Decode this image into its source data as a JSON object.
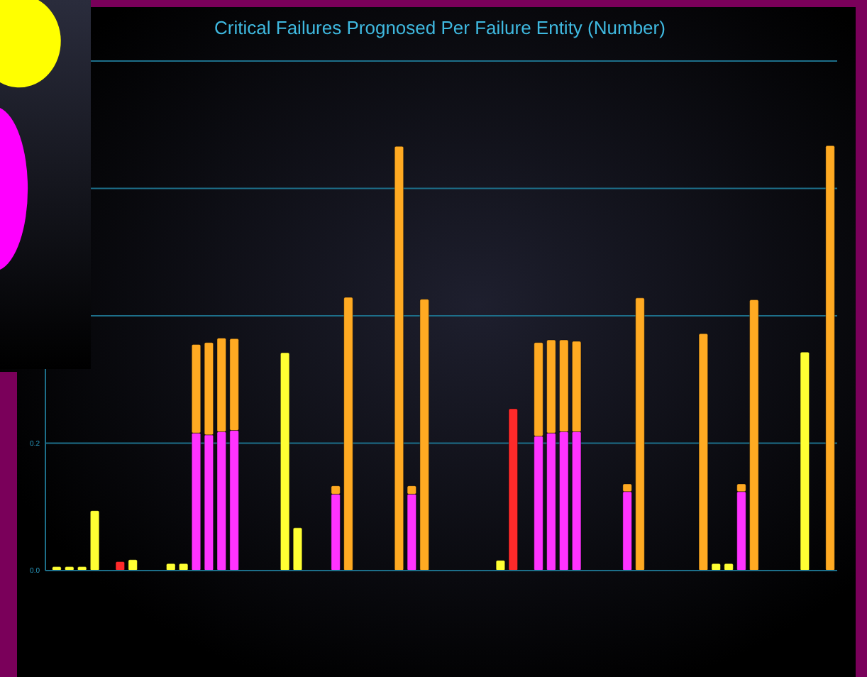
{
  "chart_data": {
    "type": "bar",
    "title": "Critical Failures Prognosed Per Failure Entity (Number)",
    "categories": [
      null,
      null,
      null,
      null,
      null,
      null,
      null,
      null,
      null,
      null,
      null,
      null,
      null,
      null,
      null,
      null,
      null,
      null,
      null,
      null,
      null,
      null,
      null,
      null,
      null,
      null,
      null,
      null,
      null,
      null,
      null,
      null,
      null,
      null,
      null,
      null,
      null,
      null,
      null,
      null,
      null,
      null,
      null,
      null,
      null,
      null,
      null,
      null,
      null,
      null,
      null,
      null,
      null,
      null,
      null,
      null,
      null,
      null,
      null,
      null,
      null,
      null
    ],
    "stacked": true,
    "series": [
      {
        "color": "#ff33ff",
        "values": [
          null,
          null,
          null,
          null,
          null,
          null,
          null,
          null,
          null,
          null,
          null,
          0.216,
          0.213,
          0.218,
          0.22,
          null,
          null,
          null,
          null,
          null,
          null,
          null,
          0.12,
          null,
          null,
          null,
          null,
          null,
          0.12,
          null,
          null,
          null,
          null,
          null,
          null,
          null,
          null,
          null,
          0.211,
          0.216,
          0.218,
          0.218,
          null,
          null,
          null,
          0.124,
          null,
          null,
          null,
          null,
          null,
          null,
          null,
          null,
          0.124,
          null,
          null,
          null,
          null,
          null,
          null,
          null
        ]
      },
      {
        "color": "#ffaa22",
        "values": [
          null,
          null,
          null,
          null,
          null,
          null,
          null,
          null,
          null,
          null,
          null,
          0.139,
          0.145,
          0.147,
          0.144,
          null,
          null,
          null,
          null,
          null,
          null,
          null,
          0.013,
          0.429,
          null,
          null,
          null,
          0.666,
          0.013,
          0.426,
          null,
          null,
          null,
          null,
          null,
          null,
          null,
          null,
          0.147,
          0.146,
          0.144,
          0.142,
          null,
          null,
          null,
          0.012,
          0.428,
          null,
          null,
          null,
          null,
          0.372,
          null,
          null,
          0.012,
          0.425,
          null,
          null,
          null,
          null,
          null,
          0.667
        ]
      },
      {
        "color": "#ffff33",
        "values": [
          0.006,
          0.006,
          0.006,
          0.094,
          null,
          null,
          0.017,
          null,
          null,
          0.011,
          0.011,
          null,
          null,
          null,
          null,
          null,
          null,
          null,
          0.342,
          0.067,
          null,
          null,
          null,
          null,
          null,
          null,
          null,
          null,
          null,
          null,
          null,
          null,
          null,
          null,
          null,
          0.016,
          null,
          null,
          null,
          null,
          null,
          null,
          null,
          null,
          null,
          null,
          null,
          null,
          null,
          null,
          null,
          null,
          0.011,
          0.011,
          null,
          null,
          null,
          null,
          null,
          0.343,
          null,
          null
        ]
      },
      {
        "color": "#ff2a2a",
        "values": [
          null,
          null,
          null,
          null,
          null,
          0.014,
          null,
          null,
          null,
          null,
          null,
          null,
          null,
          null,
          null,
          null,
          null,
          null,
          null,
          null,
          null,
          null,
          null,
          null,
          null,
          null,
          null,
          null,
          null,
          null,
          null,
          null,
          null,
          null,
          null,
          null,
          0.254,
          null,
          null,
          null,
          null,
          null,
          null,
          null,
          null,
          null,
          null,
          null,
          null,
          null,
          null,
          null,
          null,
          null,
          null,
          null,
          null,
          null,
          null,
          null,
          null,
          null
        ]
      }
    ],
    "ylim": [
      0,
      0.8
    ],
    "yticks": [
      {
        "value": 0,
        "label": "0.0"
      },
      {
        "value": 0.2,
        "label": "0.2"
      },
      {
        "value": 0.4,
        "label": null
      },
      {
        "value": 0.6,
        "label": null
      },
      {
        "value": 0.8,
        "label": null
      }
    ],
    "grid": "y"
  }
}
